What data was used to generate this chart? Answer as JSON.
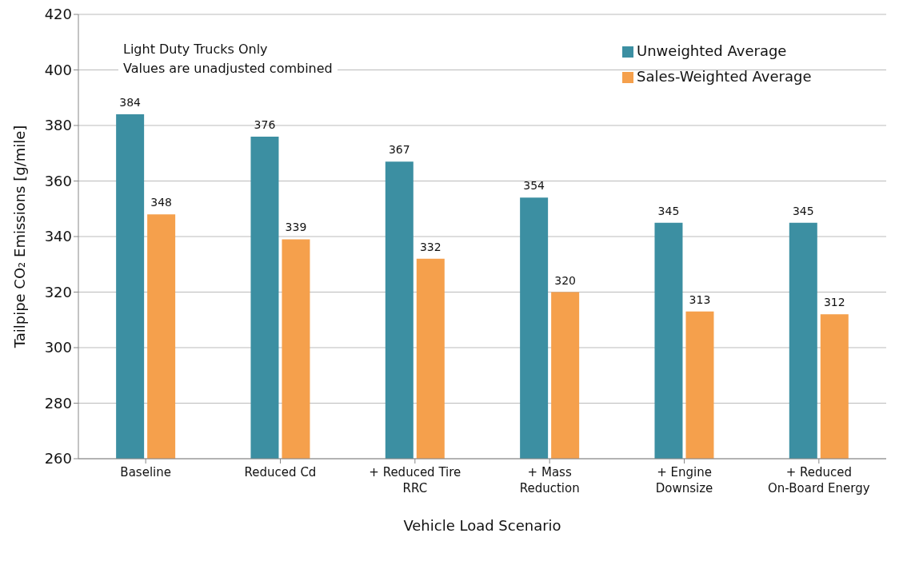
{
  "chart_data": {
    "type": "bar",
    "xlabel": "Vehicle Load Scenario",
    "ylabel": "Tailpipe CO₂ Emissions [g/mile]",
    "categories": [
      "Baseline",
      "Reduced Cd",
      "+ Reduced Tire RRC",
      "+ Mass Reduction",
      "+ Engine Downsize",
      "+ Reduced On-Board Energy"
    ],
    "series": [
      {
        "name": "Unweighted Average",
        "color": "#3c8fa2",
        "values": [
          384,
          376,
          367,
          354,
          345,
          345
        ]
      },
      {
        "name": "Sales-Weighted Average",
        "color": "#f5a04c",
        "values": [
          348,
          339,
          332,
          320,
          313,
          312
        ]
      }
    ],
    "ylim": [
      260,
      420
    ],
    "yticks": [
      260,
      280,
      300,
      320,
      340,
      360,
      380,
      400,
      420
    ],
    "grid": "y",
    "legend": "top right",
    "data_labels": true,
    "annotations": [
      "Light Duty Trucks Only",
      "Values are unadjusted combined"
    ]
  }
}
